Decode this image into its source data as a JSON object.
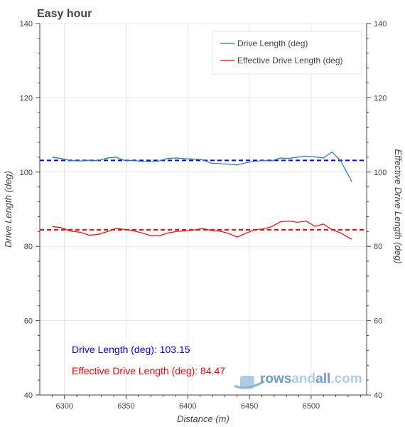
{
  "chart_data": {
    "type": "line",
    "title": "Easy hour",
    "xlabel": "Distance (m)",
    "ylabel": "Drive Length (deg)",
    "ylabel_right": "Effective Drive Length (deg)",
    "xlim": [
      6280,
      6545
    ],
    "ylim": [
      40,
      140
    ],
    "ylim_right": [
      40,
      140
    ],
    "x_ticks": [
      6300,
      6350,
      6400,
      6450,
      6500
    ],
    "y_ticks": [
      40,
      60,
      80,
      100,
      120,
      140
    ],
    "grid": true,
    "legend_position": "top-right",
    "series": [
      {
        "name": "Drive Length (deg)",
        "color": "#1f77b4",
        "x": [
          6290,
          6297,
          6305,
          6313,
          6320,
          6327,
          6335,
          6342,
          6348,
          6356,
          6363,
          6370,
          6377,
          6384,
          6391,
          6398,
          6405,
          6412,
          6419,
          6426,
          6433,
          6440,
          6447,
          6454,
          6461,
          6468,
          6475,
          6482,
          6489,
          6496,
          6503,
          6510,
          6517,
          6524,
          6533
        ],
        "values": [
          104.0,
          103.7,
          103.1,
          103.0,
          103.2,
          103.1,
          103.8,
          104.0,
          103.2,
          103.1,
          102.9,
          102.8,
          103.0,
          103.7,
          103.8,
          103.6,
          103.5,
          103.3,
          102.4,
          102.3,
          102.1,
          101.9,
          102.5,
          102.9,
          103.1,
          103.0,
          103.8,
          103.7,
          104.0,
          104.3,
          104.1,
          103.8,
          105.4,
          103.0,
          97.4
        ]
      },
      {
        "name": "Effective Drive Length (deg)",
        "color": "#ff0000",
        "x": [
          6290,
          6297,
          6305,
          6313,
          6320,
          6327,
          6335,
          6342,
          6348,
          6356,
          6363,
          6370,
          6377,
          6384,
          6391,
          6398,
          6405,
          6412,
          6419,
          6426,
          6433,
          6440,
          6447,
          6454,
          6461,
          6468,
          6475,
          6482,
          6489,
          6496,
          6503,
          6510,
          6517,
          6524,
          6533
        ],
        "values": [
          85.3,
          85.1,
          84.1,
          83.8,
          83.0,
          83.2,
          84.0,
          84.9,
          84.6,
          84.2,
          83.6,
          82.9,
          82.9,
          83.6,
          84.0,
          84.2,
          84.4,
          84.8,
          84.3,
          84.1,
          83.5,
          82.5,
          83.5,
          84.5,
          84.7,
          85.3,
          86.6,
          86.8,
          86.5,
          86.8,
          85.4,
          86.0,
          84.5,
          83.6,
          81.9
        ]
      }
    ],
    "reference_lines": [
      {
        "series": "Drive Length (deg)",
        "value": 103.15,
        "color": "#0000ff",
        "style": "dashed"
      },
      {
        "series": "Effective Drive Length (deg)",
        "value": 84.47,
        "color": "#ff0000",
        "style": "dashed"
      }
    ],
    "annotations": [
      {
        "text": "Drive Length (deg): 103.15",
        "color": "#0000ff"
      },
      {
        "text": "Effective Drive Length (deg): 84.47",
        "color": "#ff0000"
      }
    ]
  },
  "logo": {
    "text": "rowsandall.com",
    "icon": "boat-icon"
  }
}
